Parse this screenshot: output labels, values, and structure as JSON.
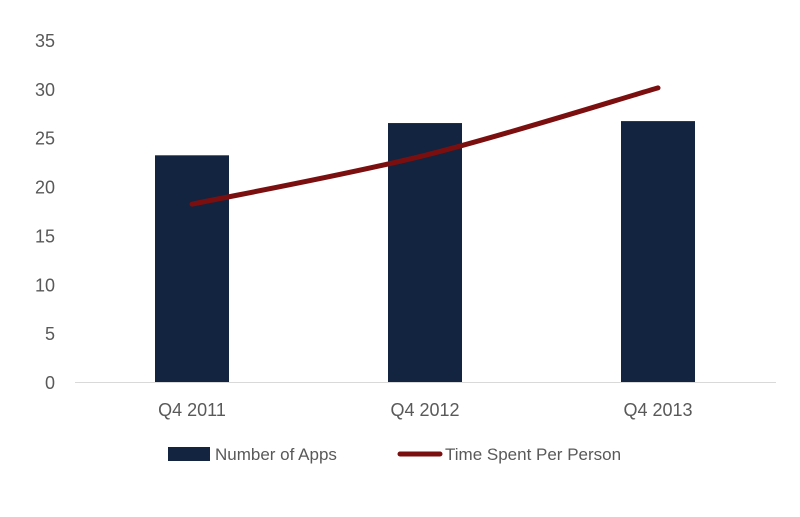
{
  "chart_data": {
    "type": "bar",
    "title": "",
    "xlabel": "",
    "ylabel": "",
    "categories": [
      "Q4 2011",
      "Q4 2012",
      "Q4 2013"
    ],
    "ylim": [
      0,
      35
    ],
    "yticks": [
      "0",
      "5",
      "10",
      "15",
      "20",
      "25",
      "30",
      "35"
    ],
    "grid": false,
    "legend_position": "bottom",
    "series": [
      {
        "name": "Number of Apps",
        "type": "bar",
        "color": "#12243f",
        "values": [
          23.2,
          26.5,
          26.7
        ]
      },
      {
        "name": "Time Spent Per Person",
        "type": "line",
        "color": "#7b0f0f",
        "values": [
          18.2,
          23.2,
          30.1
        ]
      }
    ]
  }
}
